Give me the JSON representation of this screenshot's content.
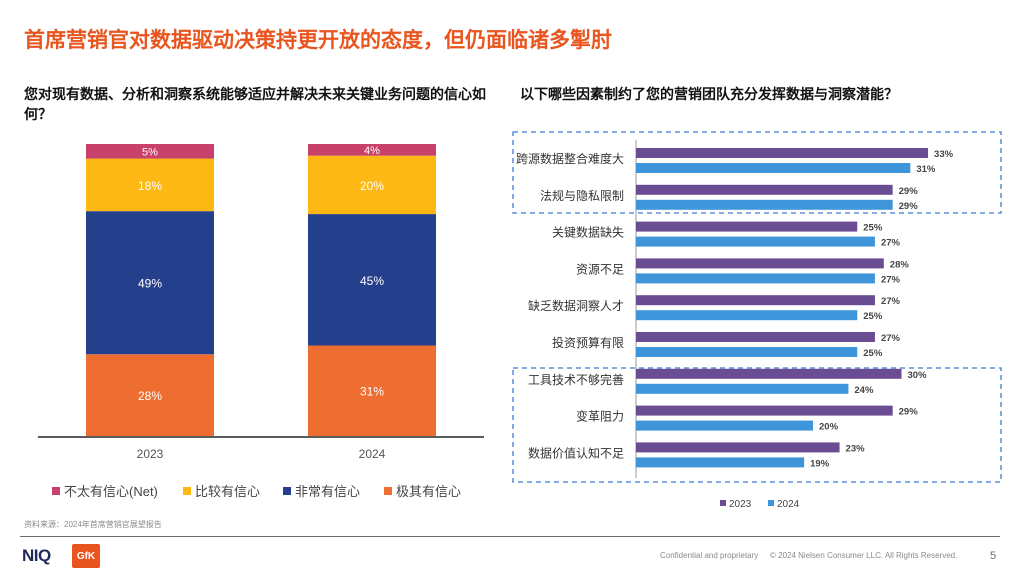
{
  "header": {
    "title": "首席营销官对数据驱动决策持更开放的态度，但仍面临诸多掣肘"
  },
  "left_panel": {
    "question": "您对现有数据、分析和洞察系统能够适应并解决未来关键业务问题的信心如何？"
  },
  "right_panel": {
    "question": "以下哪些因素制约了您的营销团队充分发挥数据与洞察潜能？"
  },
  "colors": {
    "not_confident": "#c8416b",
    "somewhat": "#fdb813",
    "very": "#243f8c",
    "extremely": "#ee6d31",
    "y2023": "#6a4c93",
    "y2024": "#3f95da"
  },
  "chart_data": [
    {
      "type": "bar",
      "subtype": "stacked-100",
      "categories": [
        "2023",
        "2024"
      ],
      "series": [
        {
          "name": "极其有信心",
          "values": [
            28,
            31
          ],
          "labels": [
            "28%",
            "31%"
          ]
        },
        {
          "name": "非常有信心",
          "values": [
            49,
            45
          ],
          "labels": [
            "49%",
            "45%"
          ]
        },
        {
          "name": "比较有信心",
          "values": [
            18,
            20
          ],
          "labels": [
            "18%",
            "20%"
          ]
        },
        {
          "name": "不太有信心(Net)",
          "values": [
            5,
            4
          ],
          "labels": [
            "5%",
            "4%"
          ]
        }
      ],
      "legend_order": [
        "不太有信心(Net)",
        "比较有信心",
        "非常有信心",
        "极其有信心"
      ],
      "legend_position": "bottom",
      "ylim": [
        0,
        100
      ]
    },
    {
      "type": "bar",
      "subtype": "horizontal-grouped",
      "categories": [
        "跨源数据整合难度大",
        "法规与隐私限制",
        "关键数据缺失",
        "资源不足",
        "缺乏数据洞察人才",
        "投资预算有限",
        "工具技术不够完善",
        "变革阻力",
        "数据价值认知不足"
      ],
      "series": [
        {
          "name": "2023",
          "values": [
            33,
            29,
            25,
            28,
            27,
            27,
            30,
            29,
            23
          ],
          "labels": [
            "33%",
            "29%",
            "25%",
            "28%",
            "27%",
            "27%",
            "30%",
            "29%",
            "23%"
          ]
        },
        {
          "name": "2024",
          "values": [
            31,
            29,
            27,
            27,
            25,
            25,
            24,
            20,
            19
          ],
          "labels": [
            "31%",
            "29%",
            "27%",
            "27%",
            "25%",
            "25%",
            "24%",
            "20%",
            "19%"
          ]
        }
      ],
      "xlim": [
        0,
        35
      ],
      "legend_position": "bottom",
      "highlighted_groups": [
        [
          0,
          1
        ],
        [
          6,
          8
        ]
      ]
    }
  ],
  "footer": {
    "source": "资料来源：2024年首席营销官展望报告",
    "logo_niq": "NIQ",
    "logo_gfk": "GfK",
    "confidential": "Confidential and proprietary",
    "copyright": "© 2024 Nielsen Consumer LLC. All Rights Reserved.",
    "page": "5"
  }
}
